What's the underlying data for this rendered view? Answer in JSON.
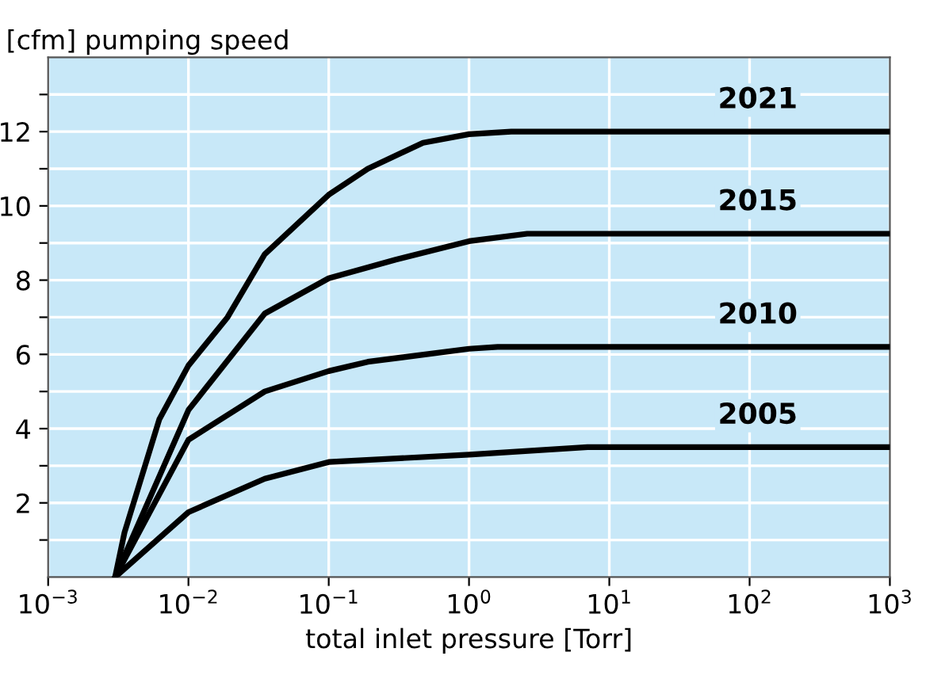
{
  "chart_data": {
    "type": "line",
    "xlabel": "total inlet pressure [Torr]",
    "ylabel": "[cfm] pumping speed",
    "log": "x",
    "xlim": [
      0.001,
      1000
    ],
    "xticks": [
      {
        "value": 0.001,
        "label": "10$^{−3}$"
      },
      {
        "value": 0.01,
        "label": "10$^{−2}$"
      },
      {
        "value": 0.1,
        "label": "10$^{−1}$"
      },
      {
        "value": 1,
        "label": "10$^{0}$"
      },
      {
        "value": 10,
        "label": "10$^{1}$"
      },
      {
        "value": 100,
        "label": "10$^{2}$"
      },
      {
        "value": 1000,
        "label": "10$^{3}$"
      }
    ],
    "ylim": [
      0,
      14
    ],
    "yticks": [
      {
        "value": 1,
        "label": null
      },
      2,
      {
        "value": 3,
        "label": null
      },
      4,
      {
        "value": 5,
        "label": null
      },
      6,
      {
        "value": 7,
        "label": null
      },
      8,
      {
        "value": 9,
        "label": null
      },
      10,
      {
        "value": 11,
        "label": null
      },
      12,
      {
        "value": 13,
        "label": null
      }
    ],
    "grid": true,
    "marker": "none",
    "line_style": "solid",
    "legend": false,
    "series": [
      {
        "name": "2021",
        "color": "#000000",
        "x": [
          0.003,
          0.0035,
          0.0062,
          0.01,
          0.019,
          0.035,
          0.1,
          0.19,
          0.47,
          1,
          2,
          1000
        ],
        "values": [
          0,
          1.2,
          4.25,
          5.7,
          7.0,
          8.7,
          10.3,
          11.0,
          11.7,
          11.93,
          12,
          12
        ]
      },
      {
        "name": "2015",
        "color": "#000000",
        "x": [
          0.003,
          0.01,
          0.035,
          0.1,
          0.3,
          1,
          2.6,
          1000
        ],
        "values": [
          0,
          4.5,
          7.1,
          8.05,
          8.55,
          9.05,
          9.25,
          9.25
        ]
      },
      {
        "name": "2010",
        "color": "#000000",
        "x": [
          0.003,
          0.01,
          0.035,
          0.1,
          0.19,
          1,
          1.6,
          1000
        ],
        "values": [
          0,
          3.7,
          5.0,
          5.55,
          5.8,
          6.15,
          6.2,
          6.2
        ]
      },
      {
        "name": "2005",
        "color": "#000000",
        "x": [
          0.003,
          0.01,
          0.035,
          0.1,
          1,
          7,
          1000
        ],
        "values": [
          0,
          1.75,
          2.65,
          3.1,
          3.3,
          3.5,
          3.5
        ]
      }
    ]
  }
}
